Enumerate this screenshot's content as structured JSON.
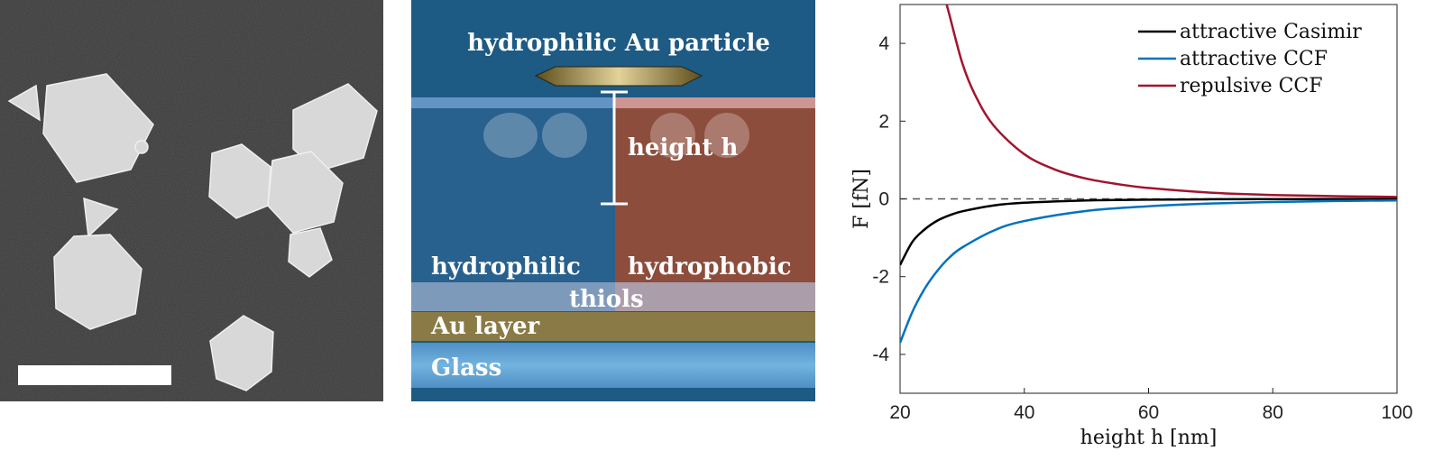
{
  "figure": {
    "panel_b": {
      "labels": {
        "particle": "hydrophilic Au particle",
        "height": "height h",
        "hydrophilic": "hydrophilic",
        "hydrophobic": "hydrophobic",
        "thiols": "thiols",
        "au_layer": "Au layer",
        "glass": "Glass"
      }
    }
  },
  "chart_data": {
    "type": "line",
    "xlabel": "height h [nm]",
    "ylabel": "F [fN]",
    "xlim": [
      20,
      100
    ],
    "ylim": [
      -5,
      5
    ],
    "xticks": [
      20,
      40,
      60,
      80,
      100
    ],
    "yticks": [
      -4,
      -2,
      0,
      2,
      4
    ],
    "zero_line": "dashed",
    "legend_position": "top-right",
    "series": [
      {
        "name": "attractive Casimir",
        "color": "#000000",
        "x": [
          20,
          22,
          24,
          26,
          28,
          30,
          35,
          40,
          50,
          60,
          70,
          80,
          90,
          100
        ],
        "y": [
          -1.7,
          -1.1,
          -0.78,
          -0.56,
          -0.42,
          -0.32,
          -0.17,
          -0.1,
          -0.04,
          -0.02,
          -0.01,
          -0.005,
          -0.003,
          -0.002
        ]
      },
      {
        "name": "attractive CCF",
        "color": "#0072BD",
        "x": [
          20,
          22,
          24,
          26,
          28,
          30,
          35,
          40,
          50,
          60,
          70,
          80,
          90,
          100
        ],
        "y": [
          -3.7,
          -2.9,
          -2.3,
          -1.85,
          -1.5,
          -1.25,
          -0.82,
          -0.57,
          -0.31,
          -0.19,
          -0.12,
          -0.08,
          -0.055,
          -0.04
        ]
      },
      {
        "name": "repulsive CCF",
        "color": "#A2142F",
        "x": [
          27.5,
          28,
          30,
          32,
          35,
          40,
          45,
          50,
          55,
          60,
          70,
          80,
          90,
          100
        ],
        "y": [
          5.0,
          4.7,
          3.5,
          2.7,
          1.9,
          1.15,
          0.75,
          0.52,
          0.38,
          0.28,
          0.16,
          0.1,
          0.07,
          0.05
        ]
      }
    ]
  }
}
